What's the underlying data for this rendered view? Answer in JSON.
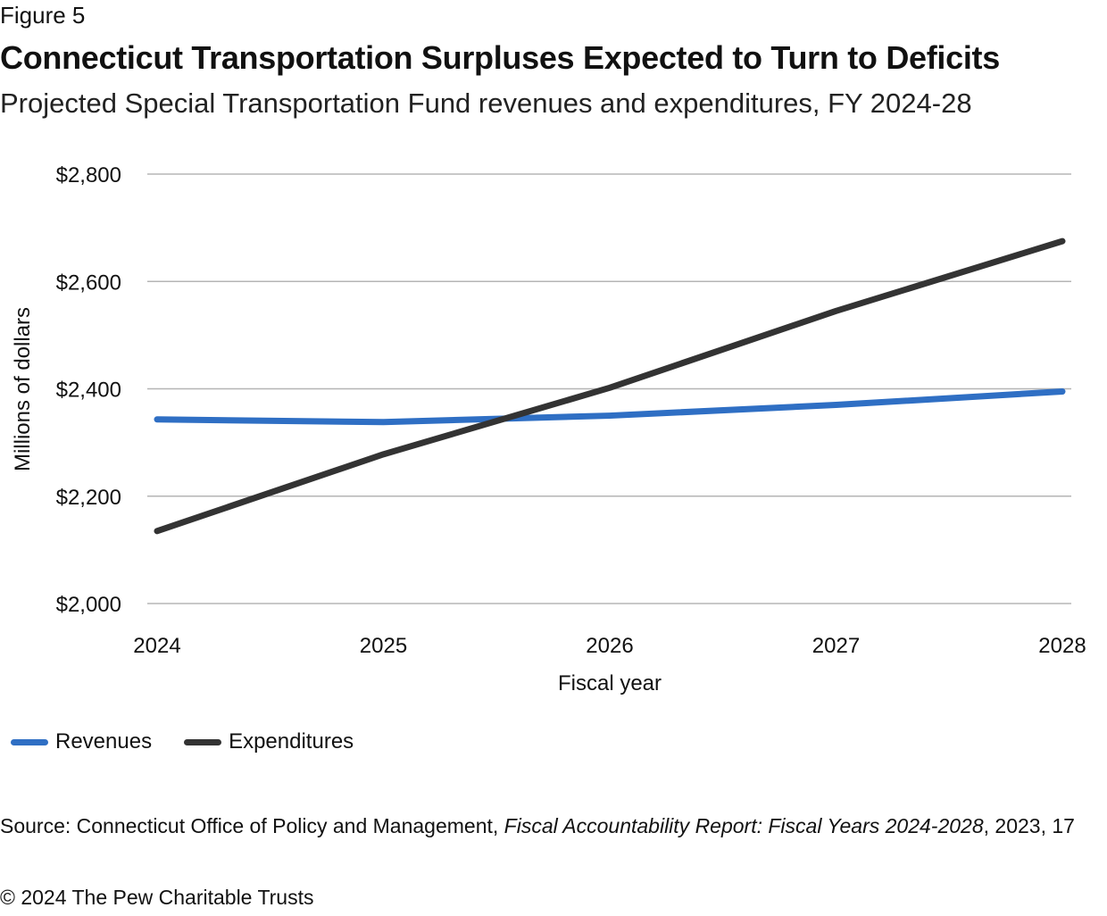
{
  "figure_label": "Figure 5",
  "title": "Connecticut Transportation Surpluses Expected to Turn to Deficits",
  "subtitle": "Projected Special Transportation Fund revenues and expenditures, FY 2024-28",
  "source": {
    "prefix": "Source: Connecticut Office of Policy and Management, ",
    "report": "Fiscal Accountability Report: Fiscal Years 2024-2028",
    "suffix": ", 2023, 17"
  },
  "copyright": "© 2024 The Pew Charitable Trusts",
  "colors": {
    "revenues": "#2f6fc4",
    "expenditures": "#333333",
    "grid": "#b5b5b5"
  },
  "chart_data": {
    "type": "line",
    "xlabel": "Fiscal year",
    "ylabel": "Millions of dollars",
    "x": [
      "2024",
      "2025",
      "2026",
      "2027",
      "2028"
    ],
    "ylim": [
      2000,
      2800
    ],
    "yticks": [
      2000,
      2200,
      2400,
      2600,
      2800
    ],
    "ytick_labels": [
      "$2,000",
      "$2,200",
      "$2,400",
      "$2,600",
      "$2,800"
    ],
    "grid": true,
    "legend_position": "bottom-left",
    "series": [
      {
        "name": "Revenues",
        "values": [
          2343,
          2338,
          2350,
          2370,
          2395
        ]
      },
      {
        "name": "Expenditures",
        "values": [
          2135,
          2278,
          2402,
          2545,
          2675
        ]
      }
    ]
  }
}
